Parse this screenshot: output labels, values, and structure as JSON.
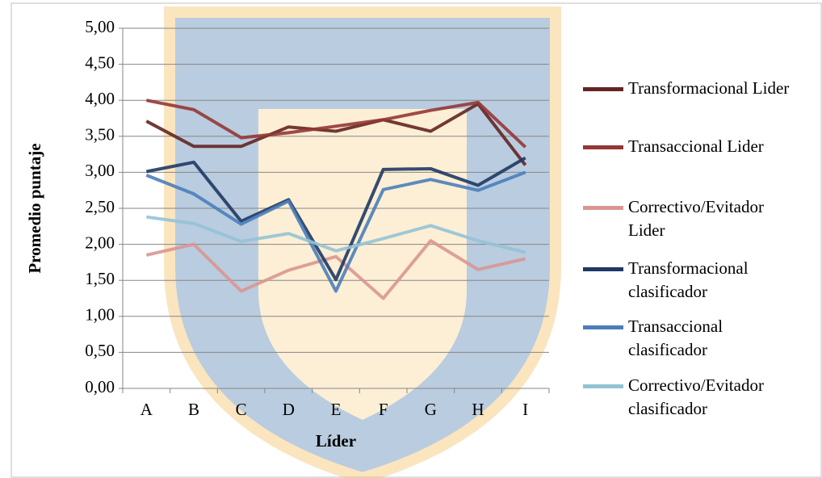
{
  "chart_data": {
    "type": "line",
    "xlabel": "Líder",
    "ylabel": "Promedio puntaje",
    "categories": [
      "A",
      "B",
      "C",
      "D",
      "E",
      "F",
      "G",
      "H",
      "I"
    ],
    "ylim": [
      0,
      5
    ],
    "yticks": [
      {
        "value": 0,
        "label": "0,00"
      },
      {
        "value": 0.5,
        "label": "0,50"
      },
      {
        "value": 1,
        "label": "1,00"
      },
      {
        "value": 1.5,
        "label": "1,50"
      },
      {
        "value": 2,
        "label": "2,00"
      },
      {
        "value": 2.5,
        "label": "2,50"
      },
      {
        "value": 3,
        "label": "3,00"
      },
      {
        "value": 3.5,
        "label": "3,50"
      },
      {
        "value": 4,
        "label": "4,00"
      },
      {
        "value": 4.5,
        "label": "4,50"
      },
      {
        "value": 5,
        "label": "5,00"
      }
    ],
    "grid": true,
    "legend": "right",
    "series": [
      {
        "name": "Transformacional Lider",
        "color": "#632523",
        "values": [
          3.71,
          3.36,
          3.36,
          3.63,
          3.57,
          3.73,
          3.57,
          3.95,
          3.1
        ]
      },
      {
        "name": "Transaccional Lider",
        "color": "#953735",
        "values": [
          4.0,
          3.87,
          3.48,
          3.55,
          3.64,
          3.73,
          3.86,
          3.97,
          3.35
        ]
      },
      {
        "name": "Correctivo/Evitador Lider",
        "color": "#d99694",
        "values": [
          1.85,
          2.0,
          1.35,
          1.64,
          1.83,
          1.25,
          2.05,
          1.65,
          1.8
        ]
      },
      {
        "name": "Transformacional clasificador",
        "color": "#1f3864",
        "values": [
          3.01,
          3.14,
          2.32,
          2.62,
          1.51,
          3.04,
          3.05,
          2.82,
          3.2
        ]
      },
      {
        "name": "Transaccional clasificador",
        "color": "#4a7ebb",
        "values": [
          2.96,
          2.7,
          2.28,
          2.6,
          1.35,
          2.76,
          2.9,
          2.75,
          3.0
        ]
      },
      {
        "name": "Correctivo/Evitador clasificador",
        "color": "#93c3d5",
        "values": [
          2.38,
          2.29,
          2.04,
          2.15,
          1.91,
          2.08,
          2.26,
          2.05,
          1.89
        ]
      }
    ]
  }
}
